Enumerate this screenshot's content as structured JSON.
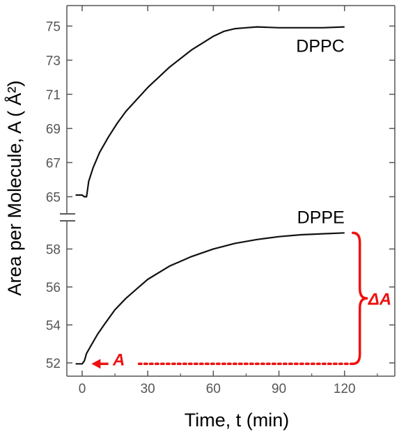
{
  "chart_data": {
    "type": "line",
    "xlabel": "Time, t (min)",
    "ylabel": "Area per Molecule, A ( Å²)",
    "xlim": [
      -7,
      143
    ],
    "x_ticks": [
      0,
      30,
      60,
      90,
      120
    ],
    "broken_y_axis": true,
    "upper_panel": {
      "ylim": [
        64.2,
        76.2
      ],
      "y_ticks": [
        65,
        67,
        69,
        71,
        73,
        75
      ]
    },
    "lower_panel": {
      "ylim": [
        51.3,
        59.3
      ],
      "y_ticks": [
        52,
        54,
        56,
        58
      ]
    },
    "grid": false,
    "series": [
      {
        "name": "DPPC",
        "panel": "upper",
        "x": [
          -3,
          0,
          1,
          2,
          3,
          5,
          8,
          12,
          16,
          20,
          25,
          30,
          35,
          40,
          45,
          50,
          55,
          60,
          65,
          70,
          75,
          80,
          90,
          100,
          110,
          120
        ],
        "y": [
          65.1,
          65.1,
          65.0,
          65.0,
          65.9,
          66.7,
          67.6,
          68.5,
          69.3,
          70.0,
          70.7,
          71.4,
          72.0,
          72.6,
          73.1,
          73.6,
          74.0,
          74.4,
          74.7,
          74.85,
          74.9,
          74.95,
          74.9,
          74.9,
          74.9,
          74.95
        ]
      },
      {
        "name": "DPPE",
        "panel": "lower",
        "x": [
          -3,
          0,
          1,
          2,
          4,
          7,
          10,
          15,
          20,
          25,
          30,
          40,
          50,
          60,
          70,
          80,
          90,
          100,
          110,
          120
        ],
        "y": [
          51.95,
          51.95,
          52.1,
          52.5,
          52.9,
          53.5,
          54.0,
          54.8,
          55.4,
          55.9,
          56.4,
          57.1,
          57.6,
          58.0,
          58.3,
          58.5,
          58.65,
          58.75,
          58.8,
          58.85
        ]
      }
    ],
    "annotations": {
      "delta_label": "ΔA",
      "initial_label": "A",
      "color": "#ee1111"
    }
  }
}
